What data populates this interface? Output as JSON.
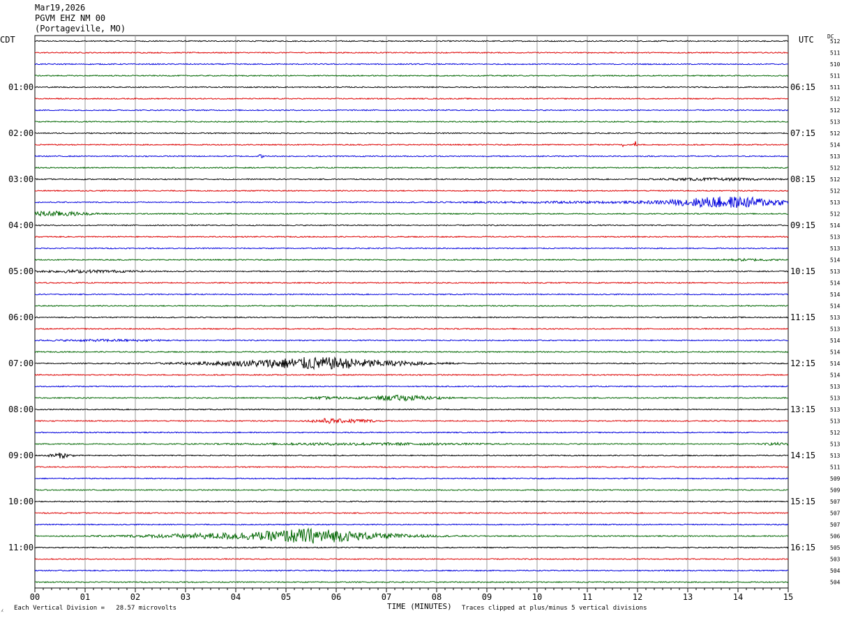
{
  "header": {
    "date": "Mar19,2026",
    "station": "PGVM EHZ NM 00",
    "location": "(Portageville, MO)"
  },
  "left_timezone": "CDT",
  "right_timezone": "UTC",
  "dc_label": "DC",
  "footer": {
    "scale_note": "Each Vertical Division =   28.57 microvolts",
    "clip_note": "Traces clipped at plus/minus 5 vertical divisions",
    "logo_char": "⁁"
  },
  "colors": {
    "black": "#000000",
    "red": "#dd0000",
    "blue": "#0000dd",
    "green": "#006600",
    "grid": "#999999"
  },
  "chart_data": {
    "type": "line",
    "title": "PGVM EHZ NM 00",
    "xlabel": "TIME (MINUTES)",
    "xlim": [
      0,
      15
    ],
    "x_ticks": [
      "00",
      "01",
      "02",
      "03",
      "04",
      "05",
      "06",
      "07",
      "08",
      "09",
      "10",
      "11",
      "12",
      "13",
      "14",
      "15"
    ],
    "trace_minutes": 15,
    "trace_count": 48,
    "trace_color_cycle": [
      "black",
      "red",
      "blue",
      "green"
    ],
    "left_hour_labels": [
      "01:00",
      "02:00",
      "03:00",
      "04:00",
      "05:00",
      "06:00",
      "07:00",
      "08:00",
      "09:00",
      "10:00",
      "11:00"
    ],
    "right_hour_labels": [
      "06:15",
      "07:15",
      "08:15",
      "09:15",
      "10:15",
      "11:15",
      "12:15",
      "13:15",
      "14:15",
      "15:15",
      "16:15"
    ],
    "hour_label_first_trace": 4,
    "hour_label_every": 4,
    "dc_offsets": [
      512,
      511,
      510,
      511,
      511,
      512,
      512,
      513,
      512,
      514,
      513,
      512,
      512,
      512,
      513,
      512,
      514,
      513,
      513,
      514,
      513,
      514,
      514,
      514,
      513,
      513,
      514,
      514,
      514,
      514,
      513,
      513,
      513,
      513,
      512,
      513,
      513,
      511,
      509,
      509,
      507,
      507,
      507,
      506,
      505,
      503,
      504,
      504
    ],
    "activity": [
      {
        "trace": 9,
        "events": [
          {
            "minute": 11.95,
            "amplitude": 3.0,
            "duration": 0.04
          },
          {
            "minute": 11.7,
            "amplitude": 2.2,
            "duration": 0.03
          }
        ]
      },
      {
        "trace": 10,
        "events": [
          {
            "minute": 4.5,
            "amplitude": 1.5,
            "duration": 0.05
          }
        ]
      },
      {
        "trace": 12,
        "events": [
          {
            "minute": 13.5,
            "amplitude": 0.6,
            "duration": 1.5
          }
        ]
      },
      {
        "trace": 14,
        "events": [
          {
            "minute": 10.5,
            "amplitude": 0.4,
            "duration": 3.0
          },
          {
            "minute": 13.8,
            "amplitude": 3.5,
            "duration": 1.6
          }
        ]
      },
      {
        "trace": 15,
        "events": [
          {
            "minute": 0.3,
            "amplitude": 1.5,
            "duration": 1.0
          }
        ]
      },
      {
        "trace": 19,
        "events": [
          {
            "minute": 14.2,
            "amplitude": 0.5,
            "duration": 0.8
          }
        ]
      },
      {
        "trace": 20,
        "events": [
          {
            "minute": 1.0,
            "amplitude": 0.7,
            "duration": 1.4
          }
        ]
      },
      {
        "trace": 26,
        "events": [
          {
            "minute": 1.5,
            "amplitude": 0.5,
            "duration": 1.5
          }
        ]
      },
      {
        "trace": 28,
        "events": [
          {
            "minute": 5.6,
            "amplitude": 2.5,
            "duration": 1.5
          },
          {
            "minute": 4.8,
            "amplitude": 1.4,
            "duration": 2.5
          },
          {
            "minute": 7.0,
            "amplitude": 1.0,
            "duration": 1.5
          }
        ]
      },
      {
        "trace": 31,
        "events": [
          {
            "minute": 7.3,
            "amplitude": 1.5,
            "duration": 1.0
          },
          {
            "minute": 5.8,
            "amplitude": 0.6,
            "duration": 0.5
          }
        ]
      },
      {
        "trace": 33,
        "events": [
          {
            "minute": 5.8,
            "amplitude": 1.3,
            "duration": 0.4
          },
          {
            "minute": 6.4,
            "amplitude": 1.0,
            "duration": 0.5
          }
        ]
      },
      {
        "trace": 35,
        "events": [
          {
            "minute": 6.5,
            "amplitude": 0.6,
            "duration": 3.0
          },
          {
            "minute": 14.8,
            "amplitude": 0.6,
            "duration": 0.4
          }
        ]
      },
      {
        "trace": 36,
        "events": [
          {
            "minute": 0.5,
            "amplitude": 1.5,
            "duration": 0.3
          }
        ]
      },
      {
        "trace": 43,
        "events": [
          {
            "minute": 5.5,
            "amplitude": 3.5,
            "duration": 1.2
          },
          {
            "minute": 4.0,
            "amplitude": 1.8,
            "duration": 2.5
          },
          {
            "minute": 6.8,
            "amplitude": 1.2,
            "duration": 1.5
          }
        ]
      }
    ]
  }
}
